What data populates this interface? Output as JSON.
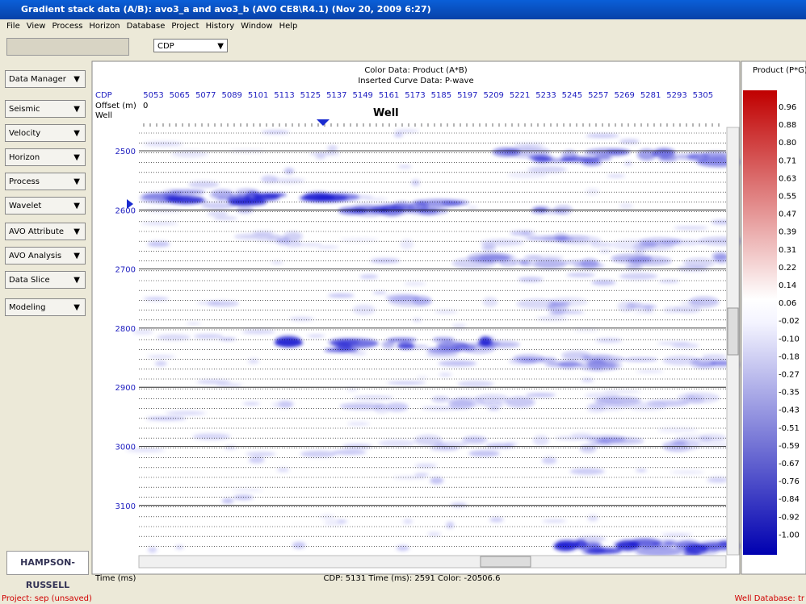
{
  "window": {
    "title": "Gradient stack data (A/B): avo3_a and avo3_b (AVO CE8\\R4.1)  (Nov 20, 2009  6:27)"
  },
  "menu": [
    "File",
    "View",
    "Process",
    "Horizon",
    "Database",
    "Project",
    "History",
    "Window",
    "Help"
  ],
  "toolbar": {
    "dropdown": "CDP"
  },
  "sidebar": [
    "Data Manager",
    "Seismic",
    "Velocity",
    "Horizon",
    "Process",
    "Wavelet",
    "AVO Attribute",
    "AVO Analysis",
    "Data Slice",
    "Modeling"
  ],
  "display": {
    "color_data": "Color Data: Product (A*B)",
    "curve_data": "Inserted Curve Data:  P-wave",
    "cdp_label": "CDP",
    "offset_label": "Offset (m)",
    "offset_value": "0",
    "well_label": "Well",
    "well_marker": "Well",
    "cdps": [
      "5053",
      "5065",
      "5077",
      "5089",
      "5101",
      "5113",
      "5125",
      "5137",
      "5149",
      "5161",
      "5173",
      "5185",
      "5197",
      "5209",
      "5221",
      "5233",
      "5245",
      "5257",
      "5269",
      "5281",
      "5293",
      "5305"
    ],
    "times": [
      "2500",
      "2600",
      "2700",
      "2800",
      "2900",
      "3000",
      "3100"
    ],
    "time_axis": "Time (ms)",
    "status": "CDP: 5131  Time (ms): 2591  Color: -20506.6"
  },
  "colorbar": {
    "title": "Product (P*G)",
    "labels": [
      "0.96",
      "0.88",
      "0.80",
      "0.71",
      "0.63",
      "0.55",
      "0.47",
      "0.39",
      "0.31",
      "0.22",
      "0.14",
      "0.06",
      "-0.02",
      "-0.10",
      "-0.18",
      "-0.27",
      "-0.35",
      "-0.43",
      "-0.51",
      "-0.59",
      "-0.67",
      "-0.76",
      "-0.84",
      "-0.92",
      "-1.00"
    ]
  },
  "logo": "HAMPSON-RUSSELL",
  "statusbar": {
    "project": "Project: sep (unsaved)",
    "well_db": "Well Database: tr"
  }
}
